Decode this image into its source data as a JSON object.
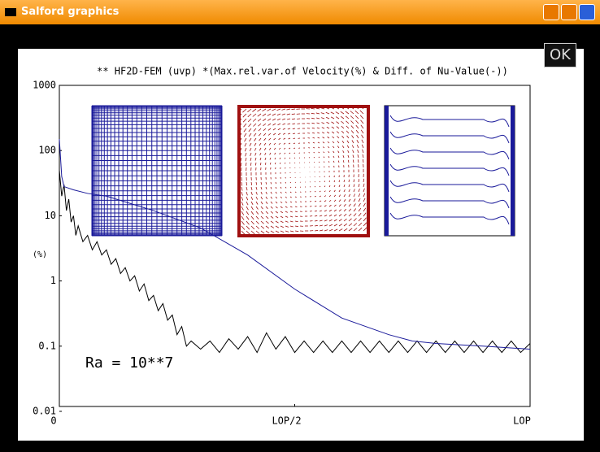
{
  "window": {
    "title": "Salford graphics",
    "button": "OK"
  },
  "chart_data": {
    "type": "line",
    "title": "** HF2D-FEM (uvp) *(Max.rel.var.of Velocity(%) & Diff. of Nu-Value(-))",
    "y_label": "(%)",
    "annotation": "Ra = 10**7",
    "log_y": true,
    "xlim": [
      0,
      1
    ],
    "xticks": [
      0,
      {
        "value": 0.5,
        "label": "LOP/2"
      },
      {
        "value": 1,
        "label": "LOP"
      }
    ],
    "ylim": [
      0.01,
      1000
    ],
    "yticks": [
      0.01,
      0.1,
      1,
      10,
      100,
      1000
    ],
    "series": [
      {
        "color": "#000000",
        "x": [
          0,
          0.005,
          0.01,
          0.015,
          0.02,
          0.025,
          0.03,
          0.035,
          0.04,
          0.05,
          0.06,
          0.07,
          0.08,
          0.09,
          0.1,
          0.11,
          0.12,
          0.13,
          0.14,
          0.15,
          0.16,
          0.17,
          0.18,
          0.19,
          0.2,
          0.21,
          0.22,
          0.23,
          0.24,
          0.25,
          0.26,
          0.27,
          0.28,
          0.3,
          0.32,
          0.34,
          0.36,
          0.38,
          0.4,
          0.42,
          0.44,
          0.46,
          0.48,
          0.5,
          0.52,
          0.54,
          0.56,
          0.58,
          0.6,
          0.62,
          0.64,
          0.66,
          0.68,
          0.7,
          0.72,
          0.74,
          0.76,
          0.78,
          0.8,
          0.82,
          0.84,
          0.86,
          0.88,
          0.9,
          0.92,
          0.94,
          0.96,
          0.98,
          1
        ],
        "values": [
          50,
          20,
          30,
          12,
          18,
          8,
          10,
          5,
          7,
          4,
          5,
          3,
          4,
          2.5,
          3,
          1.8,
          2.2,
          1.3,
          1.6,
          1,
          1.2,
          0.7,
          0.9,
          0.5,
          0.6,
          0.35,
          0.45,
          0.25,
          0.3,
          0.15,
          0.2,
          0.1,
          0.12,
          0.09,
          0.12,
          0.08,
          0.13,
          0.09,
          0.14,
          0.08,
          0.16,
          0.09,
          0.14,
          0.08,
          0.12,
          0.08,
          0.12,
          0.08,
          0.12,
          0.08,
          0.12,
          0.08,
          0.12,
          0.08,
          0.12,
          0.08,
          0.12,
          0.08,
          0.12,
          0.08,
          0.12,
          0.08,
          0.12,
          0.08,
          0.12,
          0.08,
          0.12,
          0.08,
          0.11
        ]
      },
      {
        "color": "#1a1a9a",
        "x": [
          0,
          0.005,
          0.01,
          0.03,
          0.06,
          0.1,
          0.2,
          0.3,
          0.4,
          0.5,
          0.6,
          0.7,
          0.75,
          0.8,
          0.9,
          1
        ],
        "values": [
          150,
          40,
          28,
          25,
          22,
          20,
          12,
          6.5,
          2.5,
          0.75,
          0.27,
          0.15,
          0.12,
          0.11,
          0.1,
          0.09
        ]
      }
    ]
  }
}
